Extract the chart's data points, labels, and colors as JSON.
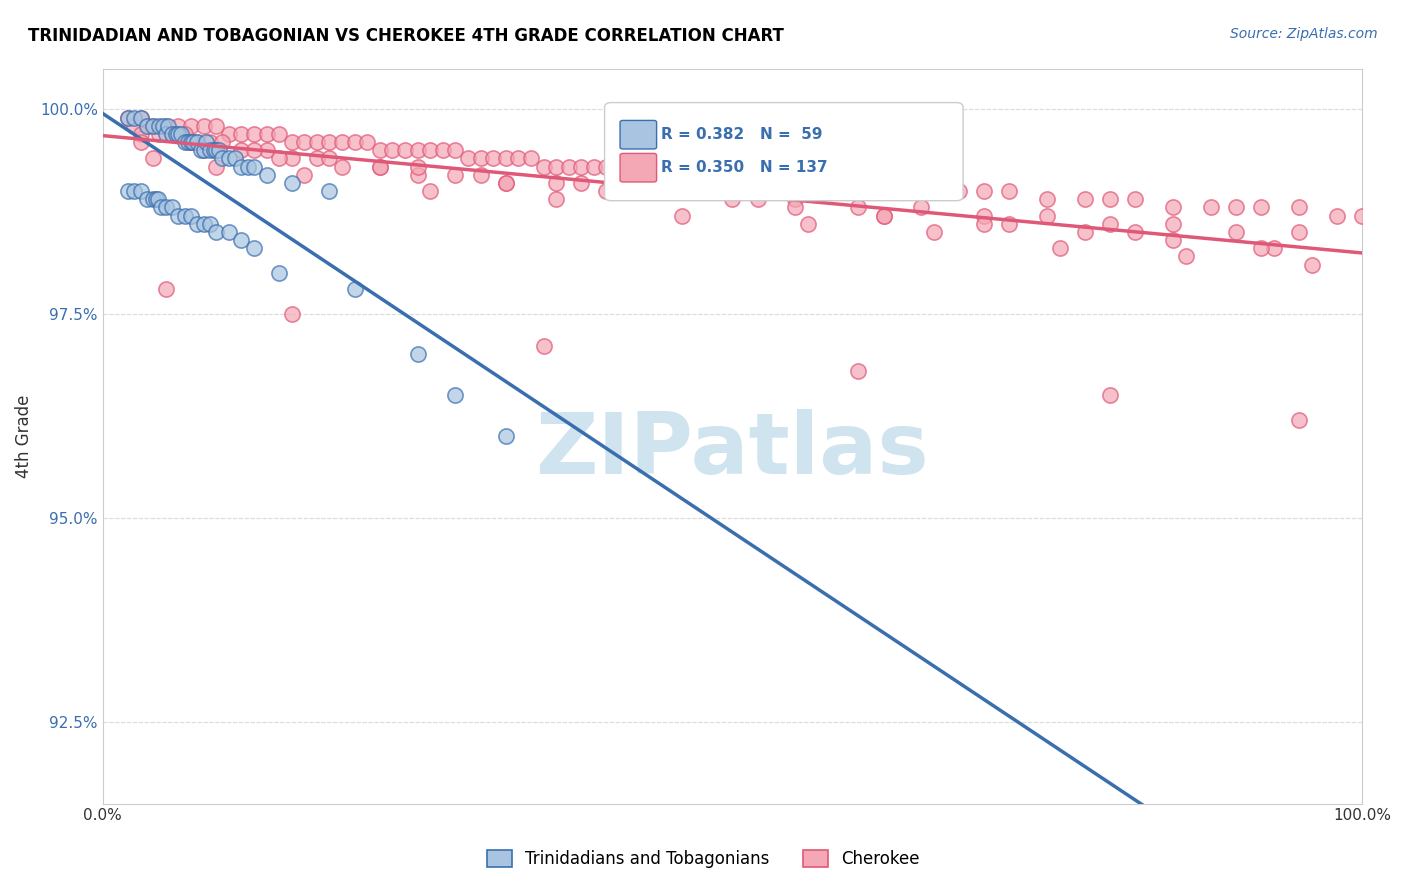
{
  "title": "TRINIDADIAN AND TOBAGONIAN VS CHEROKEE 4TH GRADE CORRELATION CHART",
  "source_text": "Source: ZipAtlas.com",
  "xlabel_bottom": "",
  "ylabel": "4th Grade",
  "x_min": 0.0,
  "x_max": 1.0,
  "y_min": 0.915,
  "y_max": 1.005,
  "x_ticks": [
    0.0,
    0.2,
    0.4,
    0.6,
    0.8,
    1.0
  ],
  "x_tick_labels": [
    "0.0%",
    "",
    "",
    "",
    "",
    "100.0%"
  ],
  "y_ticks": [
    0.925,
    0.95,
    0.975,
    1.0
  ],
  "y_tick_labels": [
    "92.5%",
    "95.0%",
    "97.5%",
    "100.0%"
  ],
  "legend_labels": [
    "Trinidadians and Tobagonians",
    "Cherokee"
  ],
  "legend_r": [
    "R = 0.382",
    "R = 0.350"
  ],
  "legend_n": [
    "N =  59",
    "N = 137"
  ],
  "blue_color": "#a8c4e0",
  "pink_color": "#f4a7b5",
  "blue_line_color": "#3a6faf",
  "pink_line_color": "#e05878",
  "grid_color": "#dddddd",
  "watermark_text": "ZIPatlas",
  "watermark_color": "#d0e4f0",
  "blue_scatter_x": [
    0.02,
    0.025,
    0.03,
    0.035,
    0.04,
    0.045,
    0.048,
    0.05,
    0.052,
    0.055,
    0.058,
    0.06,
    0.062,
    0.065,
    0.068,
    0.07,
    0.072,
    0.075,
    0.078,
    0.08,
    0.082,
    0.085,
    0.088,
    0.09,
    0.092,
    0.095,
    0.1,
    0.105,
    0.11,
    0.115,
    0.12,
    0.13,
    0.15,
    0.18,
    0.02,
    0.025,
    0.03,
    0.035,
    0.04,
    0.042,
    0.044,
    0.046,
    0.05,
    0.055,
    0.06,
    0.065,
    0.07,
    0.075,
    0.08,
    0.085,
    0.09,
    0.1,
    0.11,
    0.12,
    0.14,
    0.2,
    0.25,
    0.28,
    0.32
  ],
  "blue_scatter_y": [
    0.999,
    0.999,
    0.999,
    0.998,
    0.998,
    0.998,
    0.998,
    0.997,
    0.998,
    0.997,
    0.997,
    0.997,
    0.997,
    0.996,
    0.996,
    0.996,
    0.996,
    0.996,
    0.995,
    0.995,
    0.996,
    0.995,
    0.995,
    0.995,
    0.995,
    0.994,
    0.994,
    0.994,
    0.993,
    0.993,
    0.993,
    0.992,
    0.991,
    0.99,
    0.99,
    0.99,
    0.99,
    0.989,
    0.989,
    0.989,
    0.989,
    0.988,
    0.988,
    0.988,
    0.987,
    0.987,
    0.987,
    0.986,
    0.986,
    0.986,
    0.985,
    0.985,
    0.984,
    0.983,
    0.98,
    0.978,
    0.97,
    0.965,
    0.96
  ],
  "pink_scatter_x": [
    0.02,
    0.03,
    0.04,
    0.05,
    0.06,
    0.07,
    0.08,
    0.09,
    0.1,
    0.11,
    0.12,
    0.13,
    0.14,
    0.15,
    0.16,
    0.17,
    0.18,
    0.19,
    0.2,
    0.21,
    0.22,
    0.23,
    0.24,
    0.25,
    0.26,
    0.27,
    0.28,
    0.29,
    0.3,
    0.31,
    0.32,
    0.33,
    0.34,
    0.35,
    0.36,
    0.37,
    0.38,
    0.39,
    0.4,
    0.42,
    0.44,
    0.46,
    0.48,
    0.5,
    0.52,
    0.54,
    0.56,
    0.58,
    0.6,
    0.62,
    0.65,
    0.68,
    0.7,
    0.72,
    0.75,
    0.78,
    0.8,
    0.82,
    0.85,
    0.88,
    0.9,
    0.92,
    0.95,
    0.98,
    1.0,
    0.025,
    0.035,
    0.045,
    0.055,
    0.065,
    0.075,
    0.085,
    0.095,
    0.11,
    0.13,
    0.15,
    0.17,
    0.19,
    0.22,
    0.25,
    0.28,
    0.32,
    0.36,
    0.4,
    0.45,
    0.5,
    0.55,
    0.6,
    0.65,
    0.7,
    0.75,
    0.8,
    0.85,
    0.9,
    0.95,
    0.03,
    0.07,
    0.12,
    0.18,
    0.25,
    0.3,
    0.38,
    0.45,
    0.55,
    0.62,
    0.7,
    0.78,
    0.85,
    0.93,
    0.03,
    0.08,
    0.14,
    0.22,
    0.32,
    0.42,
    0.52,
    0.62,
    0.72,
    0.82,
    0.92,
    0.04,
    0.09,
    0.16,
    0.26,
    0.36,
    0.46,
    0.56,
    0.66,
    0.76,
    0.86,
    0.96,
    0.05,
    0.15,
    0.35,
    0.6,
    0.8,
    0.95
  ],
  "pink_scatter_y": [
    0.999,
    0.999,
    0.998,
    0.998,
    0.998,
    0.998,
    0.998,
    0.998,
    0.997,
    0.997,
    0.997,
    0.997,
    0.997,
    0.996,
    0.996,
    0.996,
    0.996,
    0.996,
    0.996,
    0.996,
    0.995,
    0.995,
    0.995,
    0.995,
    0.995,
    0.995,
    0.995,
    0.994,
    0.994,
    0.994,
    0.994,
    0.994,
    0.994,
    0.993,
    0.993,
    0.993,
    0.993,
    0.993,
    0.993,
    0.993,
    0.992,
    0.992,
    0.992,
    0.992,
    0.991,
    0.991,
    0.991,
    0.991,
    0.991,
    0.991,
    0.99,
    0.99,
    0.99,
    0.99,
    0.989,
    0.989,
    0.989,
    0.989,
    0.988,
    0.988,
    0.988,
    0.988,
    0.988,
    0.987,
    0.987,
    0.998,
    0.998,
    0.997,
    0.997,
    0.997,
    0.996,
    0.996,
    0.996,
    0.995,
    0.995,
    0.994,
    0.994,
    0.993,
    0.993,
    0.992,
    0.992,
    0.991,
    0.991,
    0.99,
    0.99,
    0.989,
    0.989,
    0.988,
    0.988,
    0.987,
    0.987,
    0.986,
    0.986,
    0.985,
    0.985,
    0.997,
    0.996,
    0.995,
    0.994,
    0.993,
    0.992,
    0.991,
    0.99,
    0.988,
    0.987,
    0.986,
    0.985,
    0.984,
    0.983,
    0.996,
    0.995,
    0.994,
    0.993,
    0.991,
    0.99,
    0.989,
    0.987,
    0.986,
    0.985,
    0.983,
    0.994,
    0.993,
    0.992,
    0.99,
    0.989,
    0.987,
    0.986,
    0.985,
    0.983,
    0.982,
    0.981,
    0.978,
    0.975,
    0.971,
    0.968,
    0.965,
    0.962
  ]
}
